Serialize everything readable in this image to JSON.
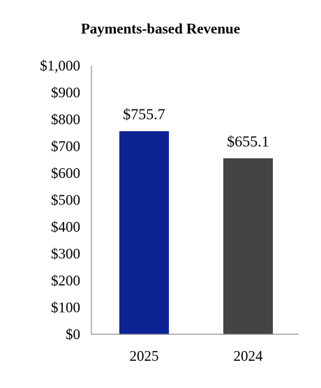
{
  "chart_data": {
    "type": "bar",
    "title": "Payments-based Revenue",
    "categories": [
      "2025",
      "2024"
    ],
    "values": [
      755.7,
      655.1
    ],
    "value_labels": [
      "$755.7",
      "$655.1"
    ],
    "bar_colors": [
      "#0c2394",
      "#444444"
    ],
    "ylim": [
      0,
      1000
    ],
    "y_ticks": [
      0,
      100,
      200,
      300,
      400,
      500,
      600,
      700,
      800,
      900,
      1000
    ],
    "y_tick_labels": [
      "$0",
      "$100",
      "$200",
      "$300",
      "$400",
      "$500",
      "$600",
      "$700",
      "$800",
      "$900",
      "$1,000"
    ],
    "grid": false,
    "legend": false
  }
}
